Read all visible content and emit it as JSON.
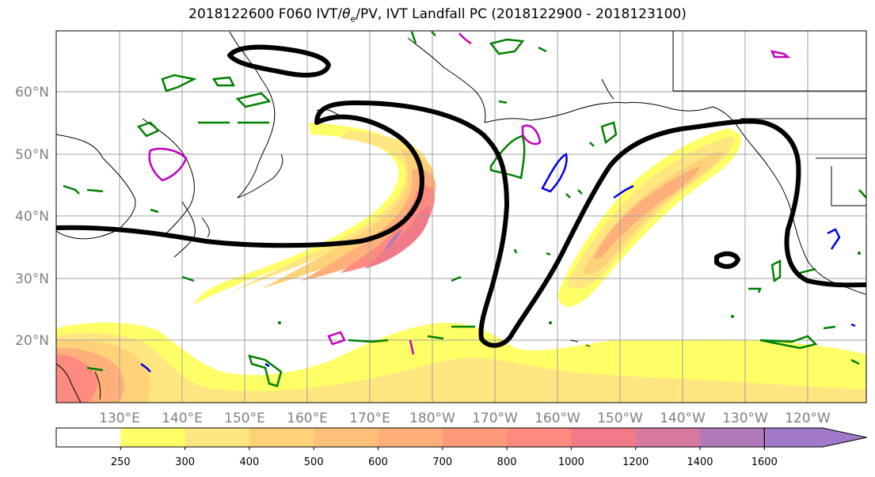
{
  "title": {
    "prefix": "2018122600 F060 IVT/",
    "theta": "θ",
    "sub": "e",
    "suffix": "/PV, IVT Landfall PC (2018122900 - 2018123100)"
  },
  "axes": {
    "lat_labels": [
      "60°N",
      "50°N",
      "40°N",
      "30°N",
      "20°N"
    ],
    "lon_labels": [
      "130°E",
      "140°E",
      "150°E",
      "160°E",
      "170°E",
      "180°W",
      "170°W",
      "160°W",
      "150°W",
      "140°W",
      "130°W",
      "120°W"
    ]
  },
  "colorbar": {
    "levels": [
      "250",
      "300",
      "400",
      "500",
      "600",
      "700",
      "800",
      "1000",
      "1200",
      "1400",
      "1600"
    ],
    "colors": [
      "#ffffff",
      "#ffff66",
      "#ffe680",
      "#ffd27a",
      "#ffc07a",
      "#ffb07a",
      "#ff9a7a",
      "#ff8a80",
      "#f07a88",
      "#d87aa0",
      "#b07ab8",
      "#a07ac8"
    ]
  },
  "colors": {
    "pc_contour": "#000000",
    "theta_contour": "#008000",
    "pv_magenta": "#c000c0",
    "pv_blue": "#0000e0",
    "coast": "#000000",
    "grid": "#a0a0a0"
  }
}
